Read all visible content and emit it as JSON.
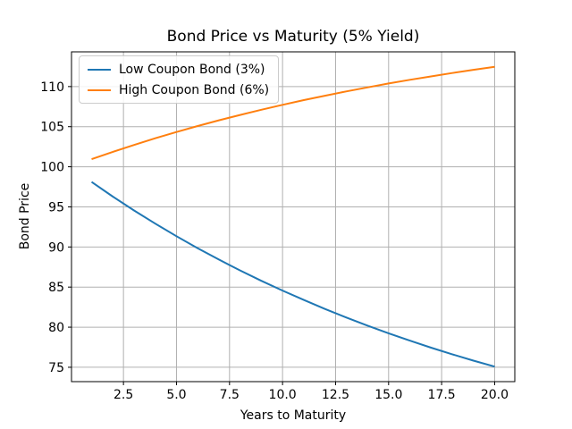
{
  "chart_data": {
    "type": "line",
    "title": "Bond Price vs Maturity (5% Yield)",
    "xlabel": "Years to Maturity",
    "ylabel": "Bond Price",
    "x": [
      1,
      2,
      3,
      4,
      5,
      6,
      7,
      8,
      9,
      10,
      11,
      12,
      13,
      14,
      15,
      16,
      17,
      18,
      19,
      20
    ],
    "series": [
      {
        "name": "Low Coupon Bond (3%)",
        "color": "#1f77b4",
        "values": [
          98.1,
          96.28,
          94.55,
          92.91,
          91.34,
          89.85,
          88.43,
          87.07,
          85.78,
          84.56,
          83.39,
          82.27,
          81.21,
          80.2,
          79.24,
          78.32,
          77.45,
          76.62,
          75.83,
          75.08
        ]
      },
      {
        "name": "High Coupon Bond (6%)",
        "color": "#ff7f0e",
        "values": [
          100.95,
          101.86,
          102.72,
          103.55,
          104.33,
          105.08,
          105.79,
          106.46,
          107.11,
          107.72,
          108.31,
          108.86,
          109.39,
          109.9,
          110.38,
          110.84,
          111.27,
          111.69,
          112.09,
          112.46
        ]
      }
    ],
    "xticks": [
      2.5,
      5.0,
      7.5,
      10.0,
      12.5,
      15.0,
      17.5,
      20.0
    ],
    "xtick_labels": [
      "2.5",
      "5.0",
      "7.5",
      "10.0",
      "12.5",
      "15.0",
      "17.5",
      "20.0"
    ],
    "yticks": [
      75,
      80,
      85,
      90,
      95,
      100,
      105,
      110
    ],
    "ytick_labels": [
      "75",
      "80",
      "85",
      "90",
      "95",
      "100",
      "105",
      "110"
    ],
    "xlim": [
      0.05,
      20.95
    ],
    "ylim": [
      73.21,
      114.33
    ],
    "grid": true,
    "legend_position": "upper left",
    "colors": {
      "grid": "#b0b0b0",
      "spine": "#000000",
      "tick_text": "#000000",
      "background": "#ffffff"
    }
  }
}
